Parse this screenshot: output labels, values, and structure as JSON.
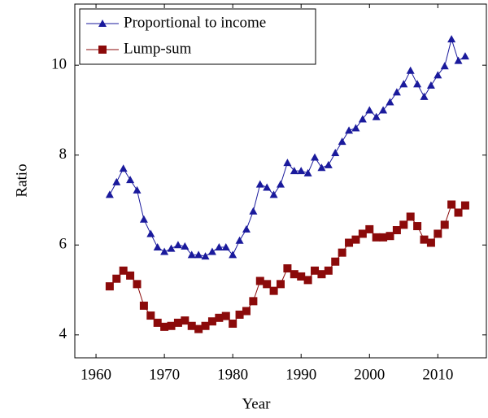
{
  "chart_data": {
    "type": "line",
    "xlabel": "Year",
    "ylabel": "Ratio",
    "x": [
      1962,
      1963,
      1964,
      1965,
      1966,
      1967,
      1968,
      1969,
      1970,
      1971,
      1972,
      1973,
      1974,
      1975,
      1976,
      1977,
      1978,
      1979,
      1980,
      1981,
      1982,
      1983,
      1984,
      1985,
      1986,
      1987,
      1988,
      1989,
      1990,
      1991,
      1992,
      1993,
      1994,
      1995,
      1996,
      1997,
      1998,
      1999,
      2000,
      2001,
      2002,
      2003,
      2004,
      2005,
      2006,
      2007,
      2008,
      2009,
      2010,
      2011,
      2012,
      2013,
      2014
    ],
    "series": [
      {
        "name": "Proportional to income",
        "color": "#1a1a9c",
        "marker": "triangle",
        "values": [
          7.12,
          7.4,
          7.7,
          7.45,
          7.22,
          6.57,
          6.25,
          5.95,
          5.85,
          5.92,
          6.0,
          5.97,
          5.78,
          5.78,
          5.75,
          5.85,
          5.95,
          5.95,
          5.78,
          6.1,
          6.35,
          6.75,
          7.35,
          7.28,
          7.12,
          7.35,
          7.83,
          7.65,
          7.65,
          7.6,
          7.95,
          7.72,
          7.78,
          8.05,
          8.3,
          8.55,
          8.6,
          8.8,
          9.0,
          8.85,
          9.0,
          9.18,
          9.4,
          9.58,
          9.88,
          9.58,
          9.3,
          9.55,
          9.78,
          9.98,
          10.58,
          10.1,
          10.2
        ]
      },
      {
        "name": "Lump-sum",
        "color": "#8b0a0a",
        "marker": "square",
        "values": [
          5.08,
          5.25,
          5.43,
          5.32,
          5.13,
          4.65,
          4.43,
          4.27,
          4.18,
          4.2,
          4.27,
          4.32,
          4.2,
          4.13,
          4.2,
          4.3,
          4.38,
          4.42,
          4.25,
          4.45,
          4.53,
          4.75,
          5.2,
          5.13,
          4.98,
          5.13,
          5.48,
          5.35,
          5.3,
          5.22,
          5.43,
          5.35,
          5.43,
          5.63,
          5.83,
          6.05,
          6.12,
          6.25,
          6.35,
          6.17,
          6.17,
          6.2,
          6.33,
          6.45,
          6.63,
          6.42,
          6.12,
          6.05,
          6.25,
          6.45,
          6.9,
          6.72,
          6.88
        ]
      }
    ],
    "xlim": [
      1956.9,
      2017.1
    ],
    "xticks": [
      1960,
      1970,
      1980,
      1990,
      2000,
      2010
    ],
    "ylim": [
      3.49,
      11.36
    ],
    "yticks": [
      4,
      6,
      8,
      10
    ],
    "legend": "top-left",
    "grid": false
  }
}
